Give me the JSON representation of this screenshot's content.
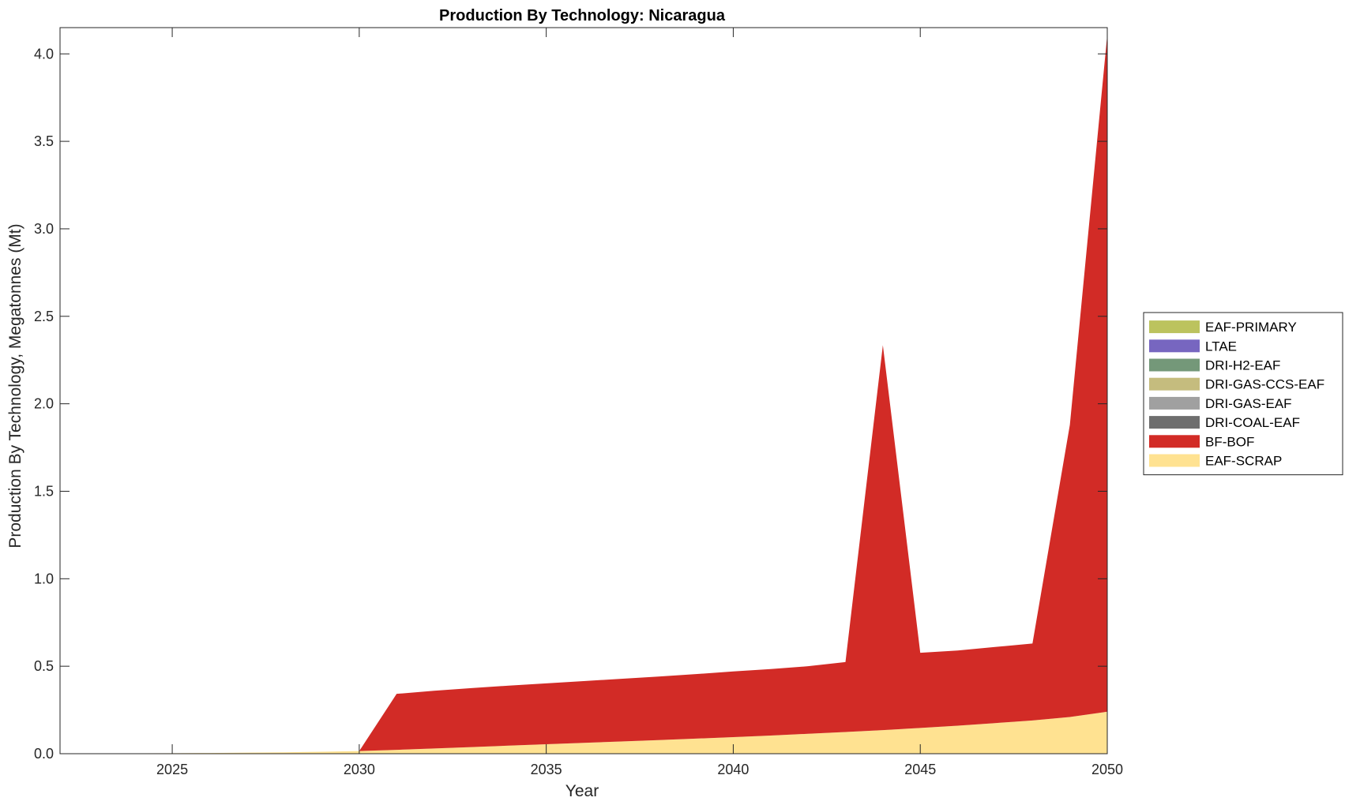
{
  "chart_data": {
    "type": "area",
    "stacked": true,
    "title": "Production By Technology: Nicaragua",
    "xlabel": "Year",
    "ylabel": "Production By Technology, Megatonnes (Mt)",
    "xlim": [
      2022,
      2050
    ],
    "ylim": [
      0,
      4.15
    ],
    "xticks": [
      2025,
      2030,
      2035,
      2040,
      2045,
      2050
    ],
    "yticks": [
      0.0,
      0.5,
      1.0,
      1.5,
      2.0,
      2.5,
      3.0,
      3.5,
      4.0
    ],
    "ytick_labels": [
      "0.0",
      "0.5",
      "1.0",
      "1.5",
      "2.0",
      "2.5",
      "3.0",
      "3.5",
      "4.0"
    ],
    "grid": false,
    "legend_position": "right",
    "x": [
      2022,
      2023,
      2024,
      2025,
      2026,
      2027,
      2028,
      2029,
      2030,
      2031,
      2032,
      2033,
      2034,
      2035,
      2036,
      2037,
      2038,
      2039,
      2040,
      2041,
      2042,
      2043,
      2044,
      2045,
      2046,
      2047,
      2048,
      2049,
      2050
    ],
    "series": [
      {
        "name": "EAF-SCRAP",
        "color": "#FFE291",
        "values": [
          0,
          0.001,
          0.002,
          0.003,
          0.004,
          0.006,
          0.008,
          0.011,
          0.015,
          0.022,
          0.03,
          0.038,
          0.046,
          0.054,
          0.062,
          0.07,
          0.078,
          0.086,
          0.095,
          0.104,
          0.114,
          0.124,
          0.135,
          0.147,
          0.16,
          0.175,
          0.19,
          0.21,
          0.24
        ]
      },
      {
        "name": "BF-BOF",
        "color": "#D22B26",
        "values": [
          0,
          0,
          0,
          0,
          0,
          0,
          0,
          0,
          0,
          0.32,
          0.33,
          0.337,
          0.343,
          0.348,
          0.353,
          0.358,
          0.363,
          0.369,
          0.375,
          0.38,
          0.386,
          0.4,
          2.2,
          0.43,
          0.43,
          0.435,
          0.44,
          1.67,
          3.87
        ]
      },
      {
        "name": "DRI-COAL-EAF",
        "color": "#6E6E6E",
        "values": [
          0,
          0,
          0,
          0,
          0,
          0,
          0,
          0,
          0,
          0,
          0,
          0,
          0,
          0,
          0,
          0,
          0,
          0,
          0,
          0,
          0,
          0,
          0,
          0,
          0,
          0,
          0,
          0,
          0
        ]
      },
      {
        "name": "DRI-GAS-EAF",
        "color": "#A0A0A0",
        "values": [
          0,
          0,
          0,
          0,
          0,
          0,
          0,
          0,
          0,
          0,
          0,
          0,
          0,
          0,
          0,
          0,
          0,
          0,
          0,
          0,
          0,
          0,
          0,
          0,
          0,
          0,
          0,
          0,
          0
        ]
      },
      {
        "name": "DRI-GAS-CCS-EAF",
        "color": "#C5BC7E",
        "values": [
          0,
          0,
          0,
          0,
          0,
          0,
          0,
          0,
          0,
          0,
          0,
          0,
          0,
          0,
          0,
          0,
          0,
          0,
          0,
          0,
          0,
          0,
          0,
          0,
          0,
          0,
          0,
          0,
          0
        ]
      },
      {
        "name": "DRI-H2-EAF",
        "color": "#749879",
        "values": [
          0,
          0,
          0,
          0,
          0,
          0,
          0,
          0,
          0,
          0,
          0,
          0,
          0,
          0,
          0,
          0,
          0,
          0,
          0,
          0,
          0,
          0,
          0,
          0,
          0,
          0,
          0,
          0,
          0
        ]
      },
      {
        "name": "LTAE",
        "color": "#7766C0",
        "values": [
          0,
          0,
          0,
          0,
          0,
          0,
          0,
          0,
          0,
          0,
          0,
          0,
          0,
          0,
          0,
          0,
          0,
          0,
          0,
          0,
          0,
          0,
          0,
          0,
          0,
          0,
          0,
          0,
          0
        ]
      },
      {
        "name": "EAF-PRIMARY",
        "color": "#BCC35E",
        "values": [
          0,
          0,
          0,
          0,
          0,
          0,
          0,
          0,
          0,
          0,
          0,
          0,
          0,
          0,
          0,
          0,
          0,
          0,
          0,
          0,
          0,
          0,
          0,
          0,
          0,
          0,
          0,
          0,
          0
        ]
      }
    ],
    "legend_order": [
      "EAF-PRIMARY",
      "LTAE",
      "DRI-H2-EAF",
      "DRI-GAS-CCS-EAF",
      "DRI-GAS-EAF",
      "DRI-COAL-EAF",
      "BF-BOF",
      "EAF-SCRAP"
    ]
  }
}
